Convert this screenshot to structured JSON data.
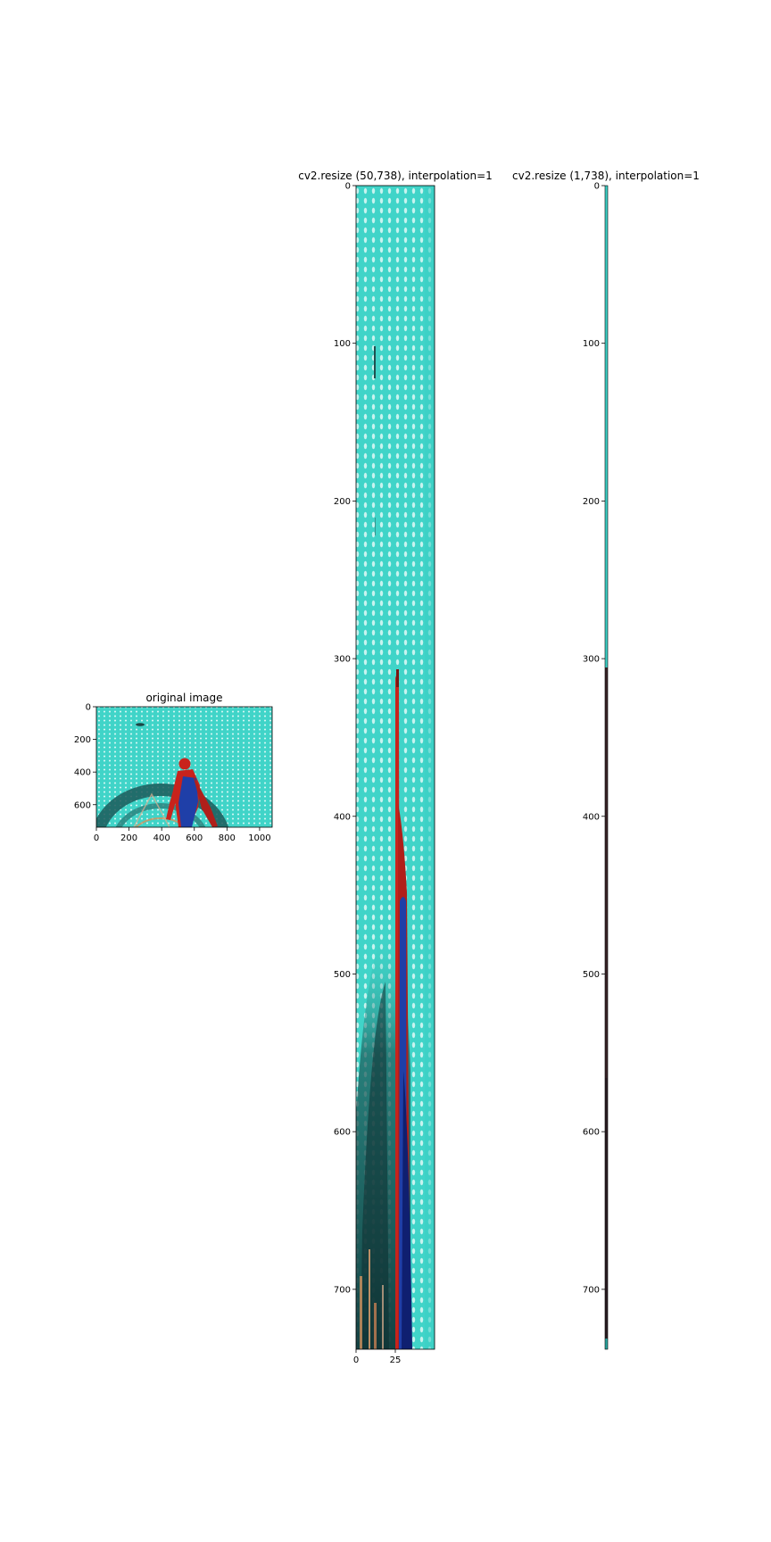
{
  "panels": [
    {
      "title": "original image",
      "x_ticks": [
        "0",
        "200",
        "400",
        "600",
        "800",
        "1000"
      ],
      "y_ticks": [
        "0",
        "200",
        "400",
        "600"
      ]
    },
    {
      "title": "cv2.resize (50,738), interpolation=1",
      "x_ticks": [
        "0",
        "25"
      ],
      "y_ticks": [
        "0",
        "100",
        "200",
        "300",
        "400",
        "500",
        "600",
        "700"
      ]
    },
    {
      "title": "cv2.resize (1,738), interpolation=1",
      "x_ticks": [],
      "y_ticks": [
        "0",
        "100",
        "200",
        "300",
        "400",
        "500",
        "600",
        "700"
      ]
    }
  ],
  "colors": {
    "cyan": "#40d4c8",
    "teal_dark": "#1c5b5a",
    "red": "#c8231c",
    "blue": "#1f3fa8",
    "orange": "#d2925e"
  }
}
